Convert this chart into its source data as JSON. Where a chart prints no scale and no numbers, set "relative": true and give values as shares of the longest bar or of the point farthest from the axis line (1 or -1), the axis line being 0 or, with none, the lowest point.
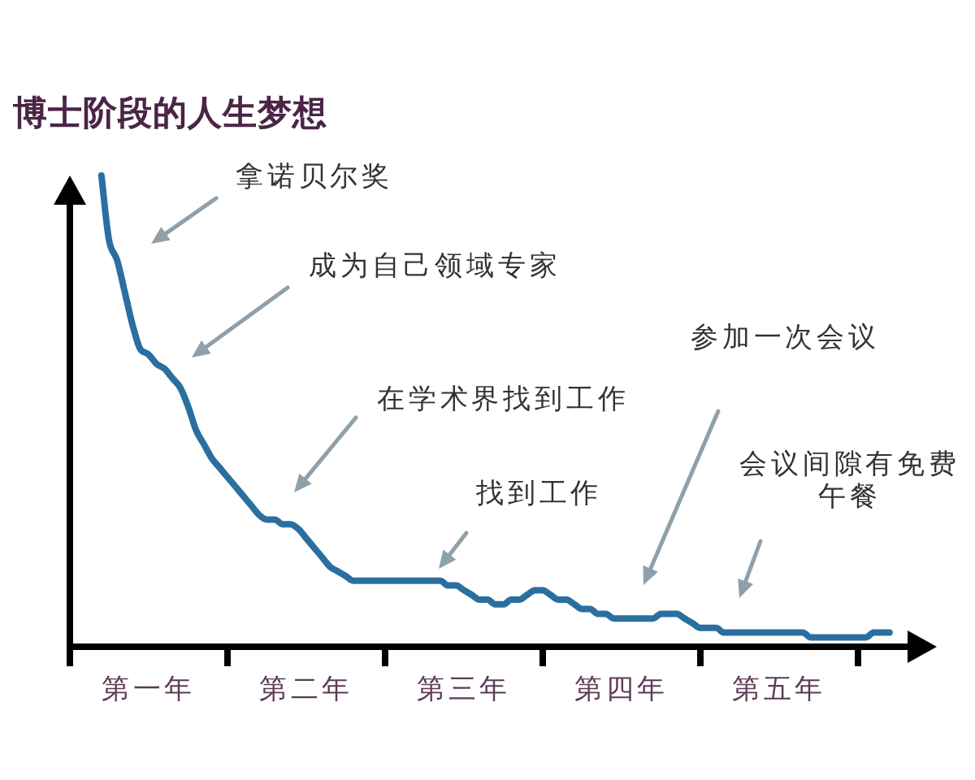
{
  "chart_data": {
    "type": "line",
    "title": "博士阶段的人生梦想",
    "relative": true,
    "categories": [
      null,
      null,
      null,
      null,
      null,
      null,
      "第一年",
      null,
      null,
      null,
      null,
      null,
      null,
      null,
      null,
      null,
      null,
      null,
      null,
      null,
      null,
      null,
      null,
      null,
      null,
      null,
      "第二年",
      null,
      null,
      null,
      null,
      null,
      null,
      null,
      null,
      null,
      null,
      null,
      null,
      null,
      null,
      null,
      null,
      null,
      null,
      null,
      "第三年",
      null,
      null,
      null,
      null,
      null,
      null,
      null,
      null,
      null,
      null,
      null,
      null,
      null,
      null,
      null,
      null,
      null,
      null,
      null,
      "第四年",
      null,
      null,
      null,
      null,
      null,
      null,
      null,
      null,
      null,
      null,
      null,
      null,
      null,
      null,
      null,
      null,
      null,
      null,
      null,
      "第五年",
      null,
      null,
      null,
      null,
      null,
      null,
      null,
      null,
      null,
      null,
      null,
      null,
      null,
      null
    ],
    "series": [
      {
        "color": "#2a6f9f",
        "values": [
          1,
          0.86,
          0.82,
          0.75,
          0.68,
          0.63,
          0.62,
          0.6,
          0.59,
          0.57,
          0.55,
          0.51,
          0.46,
          0.43,
          0.4,
          0.38,
          0.36,
          0.34,
          0.32,
          0.3,
          0.28,
          0.27,
          0.27,
          0.26,
          0.26,
          0.25,
          0.23,
          0.21,
          0.19,
          0.17,
          0.16,
          0.15,
          0.14,
          0.14,
          0.14,
          0.14,
          0.14,
          0.14,
          0.14,
          0.14,
          0.14,
          0.14,
          0.14,
          0.14,
          0.13,
          0.13,
          0.12,
          0.11,
          0.1,
          0.1,
          0.09,
          0.09,
          0.1,
          0.1,
          0.11,
          0.12,
          0.12,
          0.11,
          0.1,
          0.1,
          0.09,
          0.08,
          0.08,
          0.07,
          0.07,
          0.06,
          0.06,
          0.06,
          0.06,
          0.06,
          0.06,
          0.07,
          0.07,
          0.07,
          0.06,
          0.05,
          0.04,
          0.04,
          0.04,
          0.03,
          0.03,
          0.03,
          0.03,
          0.03,
          0.03,
          0.03,
          0.03,
          0.03,
          0.03,
          0.03,
          0.02,
          0.02,
          0.02,
          0.02,
          0.02,
          0.02,
          0.02,
          0.02,
          0.03,
          0.03,
          0.03
        ]
      }
    ],
    "annotations": [
      "拿诺贝尔奖",
      "成为自己领域专家",
      "在学术界找到工作",
      "找到工作",
      "参加一次会议",
      "会议间隙有免费午餐"
    ]
  }
}
